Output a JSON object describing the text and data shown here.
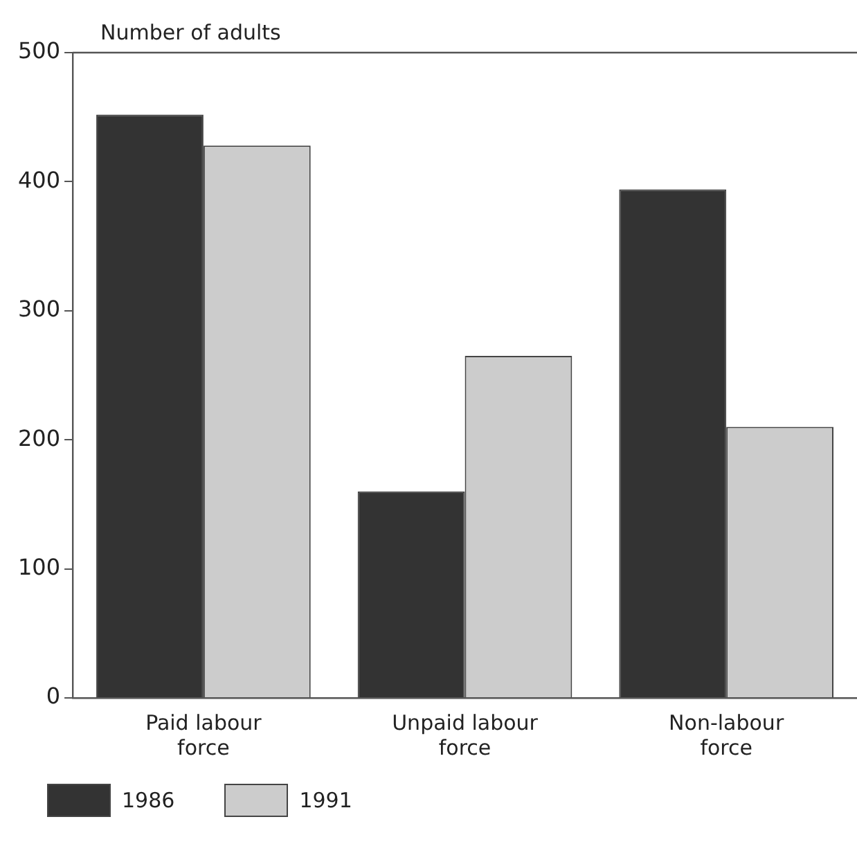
{
  "chart_data": {
    "type": "bar",
    "ylabel": "Number of adults",
    "categories": [
      "Paid labour force",
      "Unpaid labour force",
      "Non-labour force"
    ],
    "series": [
      {
        "name": "1986",
        "color": "#333333",
        "values": [
          452,
          160,
          394
        ]
      },
      {
        "name": "1991",
        "color": "#cccccc",
        "values": [
          428,
          265,
          210
        ]
      }
    ],
    "ylim": [
      0,
      500
    ],
    "yticks": [
      0,
      100,
      200,
      300,
      400,
      500
    ],
    "grid": false,
    "legend": "bottom"
  }
}
